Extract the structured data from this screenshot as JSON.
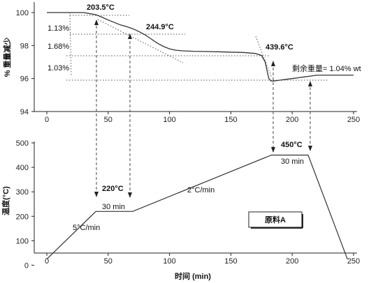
{
  "chart_data": [
    {
      "type": "line",
      "ylabel": "% 重量减少",
      "xlim": [
        0,
        250
      ],
      "ylim": [
        94,
        100
      ],
      "xticks": [
        "0",
        "50",
        "100",
        "150",
        "200",
        "250"
      ],
      "yticks": [
        "94",
        "96",
        "98",
        "100"
      ],
      "grid": false,
      "series": [
        {
          "x": [
            0,
            10,
            20,
            30,
            40,
            45,
            50,
            55,
            60,
            65,
            70,
            75,
            80,
            85,
            90,
            95,
            100,
            105,
            110,
            120,
            130,
            140,
            150,
            160,
            170,
            175,
            178,
            180,
            181,
            182,
            183,
            185,
            190,
            195,
            200,
            205,
            210,
            215,
            220,
            230,
            240,
            250
          ],
          "y": [
            100.0,
            100.0,
            100.0,
            100.0,
            99.87,
            99.72,
            99.55,
            99.4,
            99.25,
            99.15,
            99.02,
            98.85,
            98.65,
            98.4,
            98.15,
            97.95,
            97.8,
            97.72,
            97.68,
            97.65,
            97.64,
            97.62,
            97.6,
            97.58,
            97.52,
            97.4,
            97.0,
            96.3,
            96.0,
            95.9,
            95.85,
            95.85,
            95.9,
            95.95,
            96.0,
            96.05,
            96.1,
            96.15,
            96.2,
            96.2,
            96.2,
            96.2
          ]
        }
      ]
    },
    {
      "type": "line",
      "xlabel": "时间 (min)",
      "ylabel": "温度(°C)",
      "xlim": [
        0,
        250
      ],
      "ylim": [
        -50,
        500
      ],
      "xticks": [
        "0",
        "50",
        "100",
        "150",
        "200",
        "250"
      ],
      "yticks": [
        "0",
        "100",
        "200",
        "300",
        "400",
        "500"
      ],
      "grid": false,
      "series": [
        {
          "x": [
            0,
            40,
            70,
            183,
            213,
            245
          ],
          "y": [
            25,
            220,
            220,
            450,
            450,
            25
          ]
        }
      ]
    }
  ],
  "annotations": {
    "temp_203": "203.5°C",
    "temp_244": "244.9°C",
    "temp_439": "439.6°C",
    "loss_1": "1.13%",
    "loss_2": "1.68%",
    "loss_3": "1.03%",
    "residual": "剩余重量= 1.04% wt",
    "hold_220": "220°C",
    "hold_220_time": "30 min",
    "hold_450": "450°C",
    "hold_450_time": "30 min",
    "rate_5": "5°C/min",
    "rate_2": "2°C/min",
    "sample_label": "原料A"
  },
  "colors": {
    "curve": "#333333",
    "guide": "#555555",
    "axis": "#222222"
  }
}
